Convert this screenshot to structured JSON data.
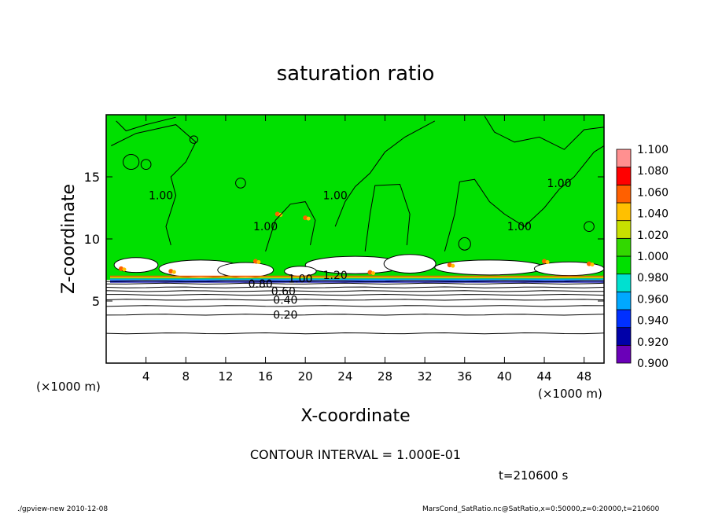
{
  "chart_data": {
    "type": "heatmap",
    "title": "saturation ratio",
    "xlabel": "X-coordinate",
    "ylabel": "Z-coordinate",
    "x_unit_left": "(×1000 m)",
    "x_unit_right": "(×1000 m)",
    "xlim": [
      0,
      50
    ],
    "ylim": [
      0,
      20
    ],
    "xticks": [
      4,
      8,
      12,
      16,
      20,
      24,
      28,
      32,
      36,
      40,
      44,
      48
    ],
    "yticks": [
      5,
      10,
      15
    ],
    "colorbar": {
      "levels": [
        "0.900",
        "0.920",
        "0.940",
        "0.960",
        "0.980",
        "1.000",
        "1.020",
        "1.040",
        "1.060",
        "1.080",
        "1.100"
      ],
      "colors": [
        "#6a00b8",
        "#0000a8",
        "#0030ff",
        "#00a8ff",
        "#00e0d0",
        "#00e000",
        "#32d800",
        "#c8e000",
        "#ffc000",
        "#ff6000",
        "#ff0000",
        "#ff9090"
      ]
    },
    "contour_labels": [
      {
        "text": "0.20",
        "x": 18,
        "z": 3.9
      },
      {
        "text": "0.40",
        "x": 18,
        "z": 5.1
      },
      {
        "text": "0.60",
        "x": 17.8,
        "z": 5.8
      },
      {
        "text": "0.80",
        "x": 15.5,
        "z": 6.4
      },
      {
        "text": "1.00",
        "x": 19.5,
        "z": 6.8
      },
      {
        "text": "1.20",
        "x": 23,
        "z": 7.1
      },
      {
        "text": "1.00",
        "x": 5.5,
        "z": 13.5
      },
      {
        "text": "1.00",
        "x": 16,
        "z": 11
      },
      {
        "text": "1.00",
        "x": 23,
        "z": 13.5
      },
      {
        "text": "1.00",
        "x": 41.5,
        "z": 11
      },
      {
        "text": "1.00",
        "x": 45.5,
        "z": 14.5
      }
    ],
    "contour_interval_text": "CONTOUR INTERVAL = 1.000E-01",
    "time_text": "t=210600 s"
  },
  "footer": {
    "left": "./gpview-new   2010-12-08",
    "right": "MarsCond_SatRatio.nc@SatRatio,x=0:50000,z=0:20000,t=210600"
  },
  "colors": {
    "saturated_green": "#00e000",
    "background": "#ffffff"
  }
}
